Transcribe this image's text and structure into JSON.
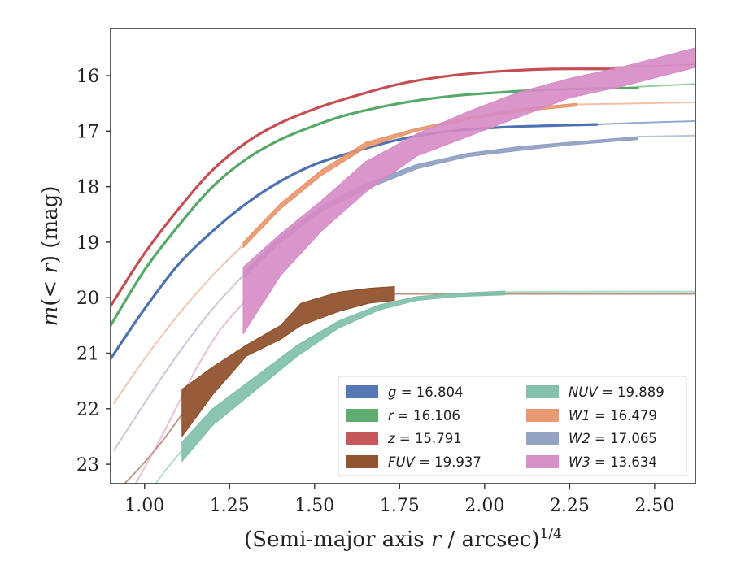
{
  "chart_data": {
    "type": "line",
    "xlabel": "(Semi-major axis r / arcsec)^{1/4}",
    "ylabel": "m(< r) (mag)",
    "xlim": [
      0.9,
      2.62
    ],
    "ylim": [
      23.35,
      15.15
    ],
    "y_inverted": true,
    "grid": false,
    "legend_position": "lower-right",
    "legend_columns": 2,
    "x_ticks": [
      "1.00",
      "1.25",
      "1.50",
      "1.75",
      "2.00",
      "2.25",
      "2.50"
    ],
    "y_ticks": [
      "16",
      "17",
      "18",
      "19",
      "20",
      "21",
      "22",
      "23"
    ],
    "series": [
      {
        "key": "g",
        "letter": "g",
        "value": "16.804",
        "color": "#4c72b0",
        "band_width": 0.05,
        "x": [
          0.9,
          1.0,
          1.1,
          1.2,
          1.3,
          1.4,
          1.5,
          1.6,
          1.75,
          1.9,
          2.05,
          2.2,
          2.33
        ],
        "y": [
          21.1,
          20.2,
          19.4,
          18.8,
          18.3,
          17.9,
          17.6,
          17.4,
          17.15,
          17.0,
          16.93,
          16.9,
          16.88
        ],
        "ext_x": [
          2.33,
          2.45,
          2.62
        ],
        "ext_y": [
          16.88,
          16.85,
          16.82
        ]
      },
      {
        "key": "r",
        "letter": "r",
        "value": "16.106",
        "color": "#55a868",
        "band_width": 0.05,
        "x": [
          0.9,
          1.0,
          1.1,
          1.2,
          1.3,
          1.4,
          1.5,
          1.6,
          1.75,
          1.9,
          2.05,
          2.2,
          2.45
        ],
        "y": [
          20.5,
          19.5,
          18.7,
          18.0,
          17.5,
          17.15,
          16.9,
          16.7,
          16.5,
          16.37,
          16.3,
          16.25,
          16.22
        ],
        "ext_x": [
          2.45,
          2.62
        ],
        "ext_y": [
          16.2,
          16.15
        ]
      },
      {
        "key": "z",
        "letter": "z",
        "value": "15.791",
        "color": "#c44e52",
        "band_width": 0.05,
        "x": [
          0.9,
          1.0,
          1.1,
          1.2,
          1.3,
          1.4,
          1.5,
          1.6,
          1.75,
          1.9,
          2.05,
          2.2,
          2.38
        ],
        "y": [
          20.15,
          19.2,
          18.4,
          17.7,
          17.2,
          16.85,
          16.6,
          16.4,
          16.15,
          16.0,
          15.92,
          15.88,
          15.88
        ],
        "ext_x": [
          2.38,
          2.62
        ],
        "ext_y": [
          15.85,
          15.8
        ]
      },
      {
        "key": "fuv",
        "letter": "FUV",
        "value": "19.937",
        "color": "#8c4a25",
        "band_x": [
          1.11,
          1.2,
          1.3,
          1.4,
          1.46,
          1.57,
          1.66,
          1.735
        ],
        "band_lo": [
          21.65,
          21.25,
          20.85,
          20.5,
          20.1,
          19.9,
          19.83,
          19.8
        ],
        "band_hi": [
          22.5,
          21.75,
          21.05,
          20.75,
          20.5,
          20.25,
          20.1,
          20.05
        ],
        "pre_x": [
          0.9,
          0.98,
          1.05,
          1.11
        ],
        "pre_y": [
          23.6,
          23.1,
          22.6,
          22.1
        ],
        "ext_x": [
          1.735,
          2.0,
          2.3,
          2.62
        ],
        "ext_y": [
          19.93,
          19.93,
          19.93,
          19.93
        ]
      },
      {
        "key": "nuv",
        "letter": "NUV",
        "value": "19.889",
        "color": "#7dbfa8",
        "band_x": [
          1.11,
          1.2,
          1.32,
          1.45,
          1.57,
          1.69,
          1.8,
          1.92,
          2.06
        ],
        "band_lo": [
          22.6,
          22.0,
          21.45,
          20.85,
          20.42,
          20.13,
          19.98,
          19.92,
          19.88
        ],
        "band_hi": [
          22.95,
          22.3,
          21.7,
          21.05,
          20.55,
          20.22,
          20.05,
          19.98,
          19.95
        ],
        "pre_x": [
          0.9,
          0.98,
          1.05,
          1.11
        ],
        "pre_y": [
          24.3,
          23.8,
          23.2,
          22.75
        ],
        "ext_x": [
          2.06,
          2.3,
          2.62
        ],
        "ext_y": [
          19.9,
          19.89,
          19.89
        ]
      },
      {
        "key": "w1",
        "letter": "W1",
        "value": "16.479",
        "color": "#e8956a",
        "band_x": [
          1.29,
          1.4,
          1.52,
          1.65,
          1.8,
          1.95,
          2.1,
          2.27
        ],
        "band_lo": [
          19.0,
          18.3,
          17.7,
          17.2,
          16.95,
          16.75,
          16.6,
          16.5
        ],
        "band_hi": [
          19.1,
          18.4,
          17.8,
          17.3,
          17.0,
          16.8,
          16.65,
          16.55
        ],
        "pre_x": [
          0.91,
          1.0,
          1.1,
          1.2,
          1.29
        ],
        "pre_y": [
          21.9,
          21.1,
          20.3,
          19.6,
          19.05
        ],
        "ext_x": [
          2.27,
          2.45,
          2.62
        ],
        "ext_y": [
          16.52,
          16.5,
          16.48
        ]
      },
      {
        "key": "w2",
        "letter": "W2",
        "value": "17.065",
        "color": "#8e9dc0",
        "band_x": [
          1.29,
          1.4,
          1.52,
          1.65,
          1.8,
          1.95,
          2.1,
          2.25,
          2.45
        ],
        "band_lo": [
          19.55,
          18.9,
          18.35,
          17.95,
          17.6,
          17.4,
          17.28,
          17.2,
          17.1
        ],
        "band_hi": [
          19.65,
          19.0,
          18.45,
          18.05,
          17.68,
          17.46,
          17.35,
          17.25,
          17.15
        ],
        "pre_x": [
          0.91,
          1.0,
          1.1,
          1.2,
          1.29
        ],
        "pre_y": [
          22.75,
          21.9,
          21.0,
          20.2,
          19.6
        ],
        "ext_x": [
          2.45,
          2.62
        ],
        "ext_y": [
          17.1,
          17.08
        ]
      },
      {
        "key": "w3",
        "letter": "W3",
        "value": "13.634",
        "color": "#d68bc4",
        "band_x": [
          1.29,
          1.4,
          1.52,
          1.65,
          1.8,
          1.95,
          2.1,
          2.25,
          2.4,
          2.62
        ],
        "band_lo": [
          19.45,
          18.85,
          18.25,
          17.55,
          17.05,
          16.65,
          16.3,
          16.05,
          15.85,
          15.5
        ],
        "band_hi": [
          20.65,
          19.6,
          18.8,
          18.1,
          17.45,
          17.1,
          16.75,
          16.4,
          16.2,
          15.85
        ],
        "pre_x": [
          0.96,
          1.05,
          1.15,
          1.22,
          1.29
        ],
        "pre_y": [
          23.5,
          22.5,
          21.3,
          20.6,
          20.1
        ]
      }
    ]
  }
}
